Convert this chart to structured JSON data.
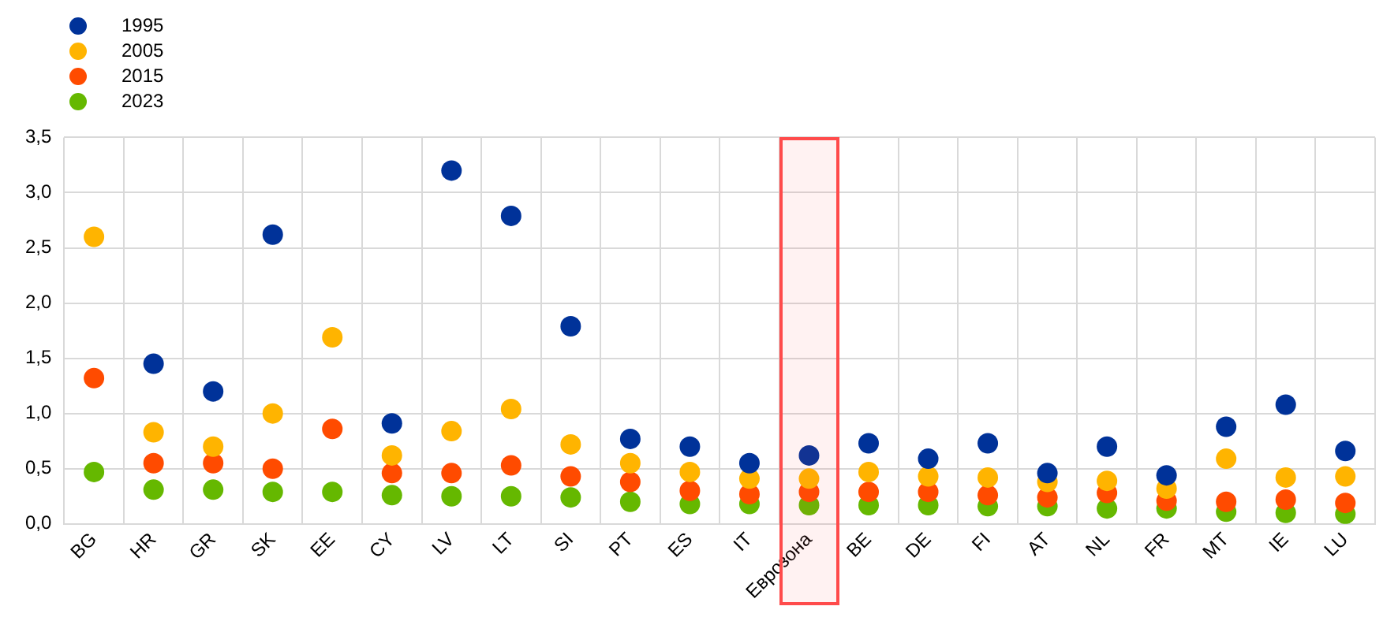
{
  "chart_data": {
    "type": "scatter",
    "categories": [
      "BG",
      "HR",
      "GR",
      "SK",
      "EE",
      "CY",
      "LV",
      "LT",
      "SI",
      "PT",
      "ES",
      "IT",
      "Еврозона",
      "BE",
      "DE",
      "FI",
      "AT",
      "NL",
      "FR",
      "MT",
      "IE",
      "LU"
    ],
    "series": [
      {
        "name": "1995",
        "color": "#003299",
        "values": [
          null,
          1.45,
          1.2,
          2.62,
          null,
          0.91,
          3.2,
          2.79,
          1.79,
          0.77,
          0.7,
          0.55,
          0.62,
          0.73,
          0.59,
          0.73,
          0.46,
          0.7,
          0.44,
          0.88,
          1.08,
          0.66
        ]
      },
      {
        "name": "2005",
        "color": "#ffb400",
        "values": [
          2.6,
          0.83,
          0.7,
          1.0,
          1.69,
          0.62,
          0.84,
          1.04,
          0.72,
          0.55,
          0.47,
          0.41,
          0.41,
          0.47,
          0.43,
          0.42,
          0.38,
          0.39,
          0.32,
          0.59,
          0.42,
          0.43
        ]
      },
      {
        "name": "2015",
        "color": "#ff4b00",
        "values": [
          1.32,
          0.55,
          0.55,
          0.5,
          0.86,
          0.46,
          0.46,
          0.53,
          0.43,
          0.38,
          0.3,
          0.27,
          0.29,
          0.29,
          0.29,
          0.26,
          0.24,
          0.28,
          0.21,
          0.2,
          0.22,
          0.19
        ]
      },
      {
        "name": "2023",
        "color": "#65b800",
        "values": [
          0.47,
          0.31,
          0.31,
          0.29,
          0.29,
          0.26,
          0.25,
          0.25,
          0.24,
          0.2,
          0.18,
          0.18,
          0.17,
          0.17,
          0.17,
          0.16,
          0.16,
          0.14,
          0.14,
          0.11,
          0.1,
          0.09
        ]
      }
    ],
    "ylim": [
      0,
      3.5
    ],
    "yticks": [
      {
        "value": 0,
        "label": "0,0"
      },
      {
        "value": 0.5,
        "label": "0,5"
      },
      {
        "value": 1,
        "label": "1,0"
      },
      {
        "value": 1.5,
        "label": "1,5"
      },
      {
        "value": 2,
        "label": "2,0"
      },
      {
        "value": 2.5,
        "label": "2,5"
      },
      {
        "value": 3,
        "label": "3,0"
      },
      {
        "value": 3.5,
        "label": "3,5"
      }
    ],
    "bands": [
      {
        "axis": "x",
        "from": "Еврозона",
        "to": "Еврозона",
        "color": "#ff4b4b"
      }
    ],
    "grid": true,
    "legend": "top left",
    "marker": "circle"
  }
}
